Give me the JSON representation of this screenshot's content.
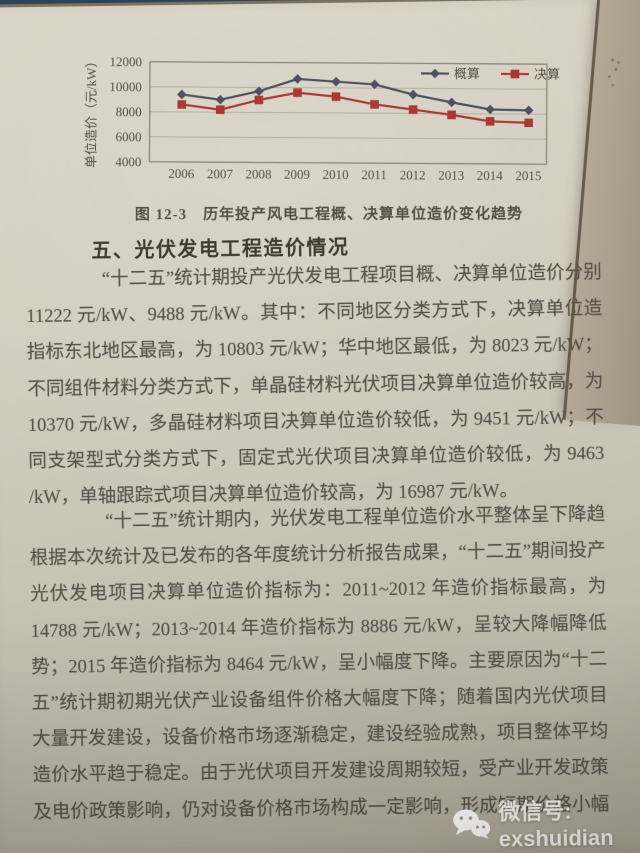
{
  "page": {
    "figure_caption": "图 12-3　历年投产风电工程概、决算单位造价变化趋势",
    "section_heading": "五、光伏发电工程造价情况",
    "para1_lines": [
      "“十二五”统计期投产光伏发电工程项目概、决算单位造价分别为",
      "11222 元/kW、9488 元/kW。其中：不同地区分类方式下，决算单位造价",
      "指标东北地区最高，为 10803 元/kW；华中地区最低，为 8023 元/kW；",
      "不同组件材料分类方式下，单晶硅材料光伏项目决算单位造价较高，为",
      "10370 元/kW，多晶硅材料项目决算单位造价较低，为 9451 元/kW；不",
      "同支架型式分类方式下，固定式光伏项目决算单位造价较低，为 9463 元",
      "/kW，单轴跟踪式项目决算单位造价较高，为 16987 元/kW。"
    ],
    "para2_lines": [
      "“十二五”统计期内，光伏发电工程单位造价水平整体呈下降趋势。",
      "根据本次统计及已发布的各年度统计分析报告成果，“十二五”期间投产",
      "光伏发电项目决算单位造价指标为：2011~2012 年造价指标最高，为",
      "14788 元/kW；2013~2014 年造价指标为 8886 元/kW，呈较大降幅降低趋",
      "势；2015 年造价指标为 8464 元/kW，呈小幅度下降。主要原因为“十二",
      "五”统计期初期光伏产业设备组件价格大幅度下降；随着国内光伏项目",
      "大量开发建设，设备价格市场逐渐稳定，建设经验成熟，项目整体平均",
      "造价水平趋于稳定。由于光伏项目开发建设周期较短，受产业开发政策",
      "及电价政策影响，仍对设备价格市场构成一定影响，形成短期价格小幅"
    ],
    "watermark_label": "微信号: exshuidian"
  },
  "chart_data": {
    "type": "line",
    "title": "图 12-3 历年投产风电工程概、决算单位造价变化趋势",
    "xlabel": "",
    "ylabel": "单位造价（元/kW）",
    "categories": [
      "2006",
      "2007",
      "2008",
      "2009",
      "2010",
      "2011",
      "2012",
      "2013",
      "2014",
      "2015"
    ],
    "series": [
      {
        "name": "概算",
        "marker": "diamond",
        "color": "#4e5260",
        "values": [
          9400,
          9000,
          9700,
          10700,
          10500,
          10300,
          9500,
          8900,
          8350,
          8300
        ]
      },
      {
        "name": "决算",
        "marker": "square",
        "color": "#a93a33",
        "values": [
          8600,
          8200,
          9000,
          9600,
          9300,
          8700,
          8300,
          7900,
          7400,
          7300
        ]
      }
    ],
    "ylim": [
      4000,
      12000
    ],
    "yticks": [
      4000,
      6000,
      8000,
      10000,
      12000
    ],
    "grid": true,
    "legend_position": "inside-top-right"
  }
}
